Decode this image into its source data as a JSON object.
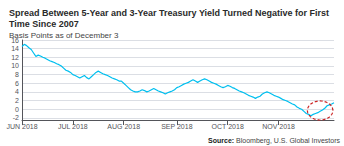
{
  "chart_data": {
    "type": "line",
    "title": "Spread Between 5-Year and 3-Year Treasury Yield Turned Negative for First Time Since 2007",
    "subtitle": "Basis Points as of December 3",
    "source_label": "Source:",
    "source": "Bloomberg, U.S. Global Investors",
    "color": "#00BFEF",
    "grid": true,
    "xlim": [
      0,
      135
    ],
    "xticks": [
      {
        "value": 0,
        "label": "JUN 2018"
      },
      {
        "value": 22,
        "label": "JUL 2018"
      },
      {
        "value": 44,
        "label": "AUG 2018"
      },
      {
        "value": 67,
        "label": "SEP 2018"
      },
      {
        "value": 89,
        "label": "OCT 2018"
      },
      {
        "value": 111,
        "label": "NOV 2018"
      }
    ],
    "ylim": [
      -2.5,
      16
    ],
    "yticks": [
      -2,
      0,
      2,
      4,
      6,
      8,
      10,
      12,
      14,
      16
    ],
    "x": [
      0,
      1,
      2,
      3,
      4,
      5,
      6,
      7,
      8,
      9,
      10,
      11,
      12,
      13,
      14,
      15,
      16,
      17,
      18,
      19,
      20,
      21,
      22,
      23,
      24,
      25,
      26,
      27,
      28,
      29,
      30,
      31,
      32,
      33,
      34,
      35,
      36,
      37,
      38,
      39,
      40,
      41,
      42,
      43,
      44,
      45,
      46,
      47,
      48,
      49,
      50,
      51,
      52,
      53,
      54,
      55,
      56,
      57,
      58,
      59,
      60,
      61,
      62,
      63,
      64,
      65,
      66,
      67,
      68,
      69,
      70,
      71,
      72,
      73,
      74,
      75,
      76,
      77,
      78,
      79,
      80,
      81,
      82,
      83,
      84,
      85,
      86,
      87,
      88,
      89,
      90,
      91,
      92,
      93,
      94,
      95,
      96,
      97,
      98,
      99,
      100,
      101,
      102,
      103,
      104,
      105,
      106,
      107,
      108,
      109,
      110,
      111,
      112,
      113,
      114,
      115,
      116,
      117,
      118,
      119,
      120,
      121,
      122,
      123,
      124,
      125,
      126,
      127,
      128,
      129,
      130,
      131,
      132,
      133,
      134,
      135
    ],
    "values": [
      14.5,
      15.0,
      14.7,
      14.2,
      13.8,
      13.0,
      12.2,
      12.5,
      12.3,
      12.0,
      11.8,
      11.5,
      11.2,
      11.0,
      10.8,
      10.5,
      10.3,
      10.0,
      9.5,
      9.0,
      8.8,
      8.5,
      8.0,
      7.8,
      7.5,
      7.2,
      7.5,
      7.8,
      7.3,
      7.0,
      7.5,
      8.0,
      8.5,
      8.8,
      8.5,
      8.2,
      8.0,
      7.8,
      7.5,
      7.2,
      7.0,
      6.8,
      6.5,
      6.5,
      6.0,
      5.5,
      5.0,
      4.5,
      4.2,
      4.0,
      4.0,
      4.2,
      4.5,
      4.3,
      4.0,
      4.2,
      4.5,
      4.8,
      4.5,
      4.2,
      4.0,
      3.8,
      3.5,
      3.8,
      4.0,
      4.2,
      4.5,
      5.0,
      5.2,
      5.5,
      5.8,
      6.0,
      6.2,
      6.5,
      6.8,
      6.5,
      6.2,
      6.5,
      6.8,
      7.0,
      6.8,
      6.5,
      6.2,
      6.0,
      5.8,
      5.5,
      5.2,
      5.0,
      5.2,
      5.5,
      5.3,
      5.0,
      4.8,
      4.5,
      4.2,
      4.0,
      3.8,
      3.5,
      3.2,
      3.0,
      2.8,
      2.5,
      2.8,
      3.0,
      3.5,
      3.8,
      4.0,
      3.8,
      3.5,
      3.2,
      3.0,
      2.8,
      2.5,
      2.2,
      2.0,
      1.8,
      1.5,
      1.2,
      1.0,
      0.5,
      0.2,
      0.0,
      -0.5,
      -1.0,
      -1.2,
      -1.5,
      -1.2,
      -1.0,
      -0.8,
      -0.5,
      -0.2,
      0.2,
      0.8,
      1.0,
      1.2,
      1.5
    ],
    "circle": {
      "x": 129,
      "y": -0.3,
      "rx": 5.5,
      "ry": 2.2,
      "color": "#CC2222"
    }
  }
}
